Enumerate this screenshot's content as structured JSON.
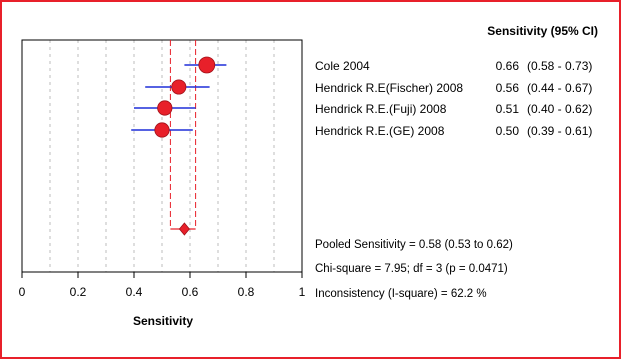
{
  "chart_data": {
    "type": "forest",
    "column_header": "Sensitivity (95% CI)",
    "xlabel": "Sensitivity",
    "xlim": [
      0,
      1
    ],
    "xticks": [
      "0",
      "0.2",
      "0.4",
      "0.6",
      "0.8",
      "1"
    ],
    "grid": true,
    "studies": [
      {
        "name": "Cole 2004",
        "estimate": 0.66,
        "ci_low": 0.58,
        "ci_high": 0.73,
        "estimate_text": "0.66",
        "ci_text": "(0.58 - 0.73)"
      },
      {
        "name": "Hendrick R.E(Fischer) 2008",
        "estimate": 0.56,
        "ci_low": 0.44,
        "ci_high": 0.67,
        "estimate_text": "0.56",
        "ci_text": "(0.44 - 0.67)"
      },
      {
        "name": "Hendrick R.E.(Fuji) 2008",
        "estimate": 0.51,
        "ci_low": 0.4,
        "ci_high": 0.62,
        "estimate_text": "0.51",
        "ci_text": "(0.40 - 0.62)"
      },
      {
        "name": "Hendrick R.E.(GE) 2008",
        "estimate": 0.5,
        "ci_low": 0.39,
        "ci_high": 0.61,
        "estimate_text": "0.50",
        "ci_text": "(0.39 - 0.61)"
      }
    ],
    "pooled": {
      "estimate": 0.58,
      "ci_low": 0.53,
      "ci_high": 0.62
    },
    "stats": [
      "Pooled Sensitivity = 0.58 (0.53 to 0.62)",
      "Chi-square = 7.95; df = 3 (p = 0.0471)",
      "Inconsistency (I-square) = 62.2 %"
    ],
    "colors": {
      "border": "#e8202a",
      "marker": "#e8202a",
      "ci_line": "#1f2fd8",
      "dashed": "#e8202a",
      "grid": "#bdbdbd"
    }
  }
}
